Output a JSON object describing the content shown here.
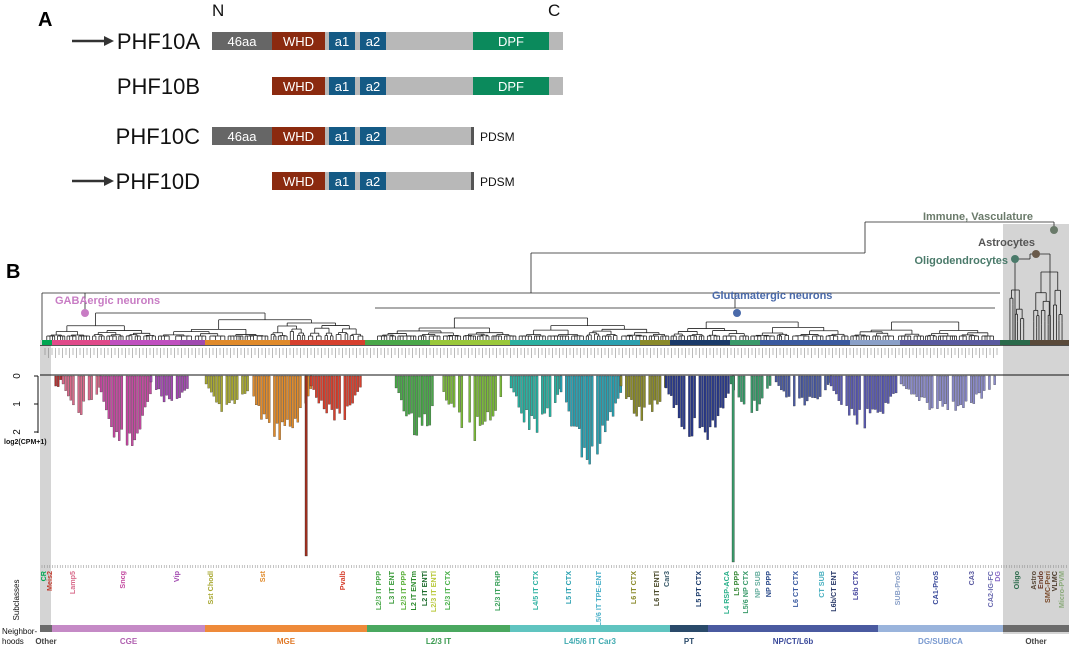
{
  "panelA": {
    "letter": "A",
    "terminal_n": "N",
    "terminal_c": "C",
    "domain_colors": {
      "46aa": "#666666",
      "WHD": "#8b2a0f",
      "a1": "#145a85",
      "a2": "#145a85",
      "DPF": "#0b8a5c",
      "linker": "#b8b8b8",
      "pdsm_bar": "#555555"
    },
    "isoforms": [
      {
        "name": "PHF10A",
        "arrow": true,
        "domains": [
          "46aa",
          "WHD",
          "a1",
          "a2",
          "DPF"
        ],
        "pdsm": false
      },
      {
        "name": "PHF10B",
        "arrow": false,
        "domains": [
          "WHD",
          "a1",
          "a2",
          "DPF"
        ],
        "pdsm": false
      },
      {
        "name": "PHF10C",
        "arrow": false,
        "domains": [
          "46aa",
          "WHD",
          "a1",
          "a2"
        ],
        "pdsm": true
      },
      {
        "name": "PHF10D",
        "arrow": true,
        "domains": [
          "WHD",
          "a1",
          "a2"
        ],
        "pdsm": true
      }
    ],
    "pdsm_label": "PDSM"
  },
  "panelB": {
    "letter": "B",
    "clades": [
      {
        "name": "Immune, Vasculature",
        "color": "#6a7a6a"
      },
      {
        "name": "Astrocytes",
        "color": "#555555"
      },
      {
        "name": "Oligodendrocytes",
        "color": "#4a7a6a"
      },
      {
        "name": "GABAergic neurons",
        "color": "#c87cc4"
      },
      {
        "name": "Glutamatergic neurons",
        "color": "#4a6aaa"
      }
    ],
    "y_axis": {
      "label": "log2(CPM+1)",
      "ticks": [
        "0",
        "1",
        "2"
      ],
      "range": [
        0,
        2
      ]
    },
    "row_headers": {
      "subclasses": "Subclasses",
      "neighborhoods_1": "Neighbor-",
      "neighborhoods_2": "hoods"
    },
    "subclasses": [
      {
        "name": "CR",
        "color": "#00a651"
      },
      {
        "name": "Meis2",
        "color": "#c0392b"
      },
      {
        "name": "Lamp5",
        "color": "#d86a8a"
      },
      {
        "name": "Sncg",
        "color": "#c34aa0"
      },
      {
        "name": "Vip",
        "color": "#a24ab0"
      },
      {
        "name": "Sst Chodl",
        "color": "#a8a832"
      },
      {
        "name": "Sst",
        "color": "#e08a2a"
      },
      {
        "name": "Pvalb",
        "color": "#d6402e"
      },
      {
        "name": "L2/3 IT PPP",
        "color": "#4aa84a"
      },
      {
        "name": "L3 IT ENT",
        "color": "#3a9a3a"
      },
      {
        "name": "L2/3 IT PPP",
        "color": "#5ab03a"
      },
      {
        "name": "L2 IT ENTm",
        "color": "#2a8a2a"
      },
      {
        "name": "L2 IT ENTl",
        "color": "#1a6a2a"
      },
      {
        "name": "L2/3 IT ENTl",
        "color": "#b8c83a"
      },
      {
        "name": "L2/3 IT CTX",
        "color": "#4ab04a"
      },
      {
        "name": "L2/3 IT RHP",
        "color": "#3aa05a"
      },
      {
        "name": "L4/5 IT CTX",
        "color": "#2ab0a0"
      },
      {
        "name": "L5 IT CTX",
        "color": "#2aa0b0"
      },
      {
        "name": "L5/6 IT TPE-ENT",
        "color": "#4ab0c8"
      },
      {
        "name": "L6 IT CTX",
        "color": "#8a8a2a"
      },
      {
        "name": "L6 IT ENTl",
        "color": "#4a4a2a"
      },
      {
        "name": "Car3",
        "color": "#3a5a6a"
      },
      {
        "name": "L5 PT CTX",
        "color": "#1a3a6a"
      },
      {
        "name": "L4 RSP-ACA",
        "color": "#2ab08a"
      },
      {
        "name": "L5 PPP",
        "color": "#3a8a3a"
      },
      {
        "name": "L5/6 NP CTX",
        "color": "#3a9a6a"
      },
      {
        "name": "NP SUB",
        "color": "#6ab0a0"
      },
      {
        "name": "NP PPP",
        "color": "#2a4a8a"
      },
      {
        "name": "L6 CT CTX",
        "color": "#3a5aa0"
      },
      {
        "name": "CT SUB",
        "color": "#4ab0c0"
      },
      {
        "name": "L6b/CT ENT",
        "color": "#2a3a6a"
      },
      {
        "name": "L6b CTX",
        "color": "#4a4aa0"
      },
      {
        "name": "SUB-ProS",
        "color": "#8aa0c8"
      },
      {
        "name": "CA1-ProS",
        "color": "#3a4a9a"
      },
      {
        "name": "CA3",
        "color": "#5a5aa0"
      },
      {
        "name": "CA2-IG-FC",
        "color": "#6a6ab0"
      },
      {
        "name": "DG",
        "color": "#8a6ac8"
      },
      {
        "name": "Oligo",
        "color": "#2a6a4a"
      },
      {
        "name": "Astro",
        "color": "#5a4a3a"
      },
      {
        "name": "Endo",
        "color": "#6a3a2a"
      },
      {
        "name": "SMC-Peri",
        "color": "#7a4a2a"
      },
      {
        "name": "VLMC",
        "color": "#4a3a2a"
      },
      {
        "name": "Micro-PVM",
        "color": "#8aaa7a"
      }
    ],
    "neighborhoods": [
      {
        "name": "Other",
        "color": "#6b6b6b",
        "label_color": "#444444"
      },
      {
        "name": "CGE",
        "color": "#c58ac6",
        "label_color": "#b060b0"
      },
      {
        "name": "MGE",
        "color": "#ee8a3a",
        "label_color": "#e07a2a"
      },
      {
        "name": "L2/3 IT",
        "color": "#4aa860",
        "label_color": "#3a9a50"
      },
      {
        "name": "L4/5/6 IT Car3",
        "color": "#60c4c0",
        "label_color": "#40aab0"
      },
      {
        "name": "PT",
        "color": "#2a4a6a",
        "label_color": "#2a4a6a"
      },
      {
        "name": "NP/CT/L6b",
        "color": "#4a5aa0",
        "label_color": "#3a4a9a"
      },
      {
        "name": "DG/SUB/CA",
        "color": "#9ab4dc",
        "label_color": "#7a9ad0"
      },
      {
        "name": "Other",
        "color": "#6b6b6b",
        "label_color": "#444444"
      }
    ]
  }
}
